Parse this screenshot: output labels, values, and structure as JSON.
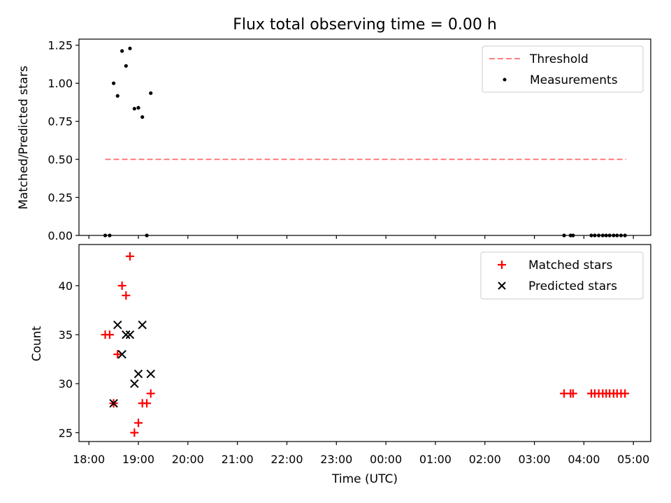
{
  "chart_data": {
    "title": "Flux total observing time = 0.00 h",
    "xlabel": "Time (UTC)",
    "x_unit": "hours since 18:00 UTC",
    "xlim": [
      -0.2,
      11.35
    ],
    "x_ticks": [
      {
        "v": 0,
        "label": "18:00"
      },
      {
        "v": 1,
        "label": "19:00"
      },
      {
        "v": 2,
        "label": "20:00"
      },
      {
        "v": 3,
        "label": "21:00"
      },
      {
        "v": 4,
        "label": "22:00"
      },
      {
        "v": 5,
        "label": "23:00"
      },
      {
        "v": 6,
        "label": "00:00"
      },
      {
        "v": 7,
        "label": "01:00"
      },
      {
        "v": 8,
        "label": "02:00"
      },
      {
        "v": 9,
        "label": "03:00"
      },
      {
        "v": 10,
        "label": "04:00"
      },
      {
        "v": 11,
        "label": "05:00"
      }
    ],
    "panels": [
      {
        "type": "scatter",
        "ylabel": "Matched/Predicted stars",
        "ylim": [
          0,
          1.29
        ],
        "y_ticks": [
          0,
          0.25,
          0.5,
          0.75,
          1.0,
          1.25
        ],
        "y_tick_labels": [
          "0.00",
          "0.25",
          "0.50",
          "0.75",
          "1.00",
          "1.25"
        ],
        "legend": [
          "Threshold",
          "Measurements"
        ],
        "threshold": {
          "name": "Threshold",
          "y": 0.5,
          "x": [
            0.33,
            10.85
          ],
          "color": "#ff7f7f"
        },
        "series": [
          {
            "name": "Measurements",
            "marker": "dot",
            "color": "#000000",
            "x": [
              0.33,
              0.42,
              0.5,
              0.58,
              0.67,
              0.75,
              0.83,
              0.92,
              1.0,
              1.08,
              1.17,
              1.25,
              9.6,
              9.73,
              9.78,
              10.15,
              10.22,
              10.3,
              10.38,
              10.45,
              10.52,
              10.6,
              10.67,
              10.75,
              10.83
            ],
            "y": [
              0.0,
              0.0,
              1.0,
              0.917,
              1.212,
              1.114,
              1.229,
              0.833,
              0.839,
              0.778,
              0.0,
              0.935,
              0.0,
              0.0,
              0.0,
              0.0,
              0.0,
              0.0,
              0.0,
              0.0,
              0.0,
              0.0,
              0.0,
              0.0,
              0.0
            ]
          }
        ]
      },
      {
        "type": "scatter",
        "ylabel": "Count",
        "ylim": [
          24.1,
          44.2
        ],
        "y_ticks": [
          25,
          30,
          35,
          40
        ],
        "y_tick_labels": [
          "25",
          "30",
          "35",
          "40"
        ],
        "legend": [
          "Matched stars",
          "Predicted stars"
        ],
        "series": [
          {
            "name": "Matched stars",
            "marker": "plus",
            "color": "#ff0000",
            "x": [
              0.33,
              0.42,
              0.5,
              0.58,
              0.67,
              0.75,
              0.83,
              0.92,
              1.0,
              1.08,
              1.17,
              1.25,
              9.6,
              9.73,
              9.78,
              10.15,
              10.22,
              10.3,
              10.38,
              10.45,
              10.52,
              10.6,
              10.67,
              10.75,
              10.83
            ],
            "y": [
              35,
              35,
              28,
              33,
              40,
              39,
              43,
              25,
              26,
              28,
              28,
              29,
              29,
              29,
              29,
              29,
              29,
              29,
              29,
              29,
              29,
              29,
              29,
              29,
              29
            ]
          },
          {
            "name": "Predicted stars",
            "marker": "x",
            "color": "#000000",
            "x": [
              0.5,
              0.58,
              0.67,
              0.75,
              0.83,
              0.92,
              1.0,
              1.08,
              1.25
            ],
            "y": [
              28,
              36,
              33,
              35,
              35,
              30,
              31,
              36,
              31
            ]
          }
        ]
      }
    ]
  }
}
